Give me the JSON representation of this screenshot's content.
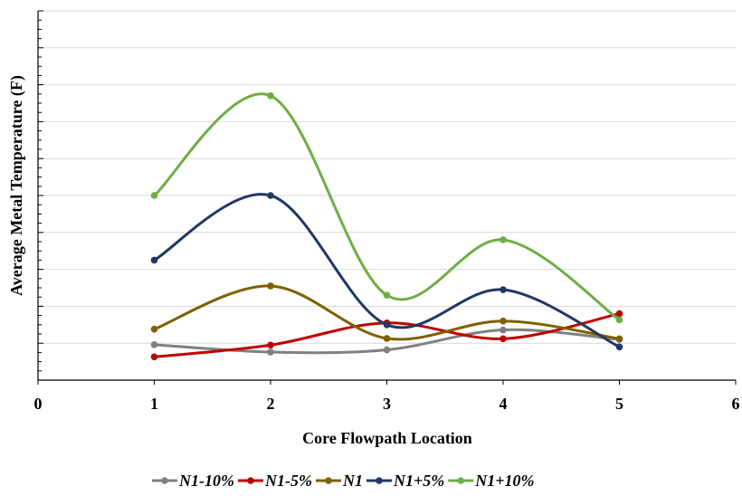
{
  "chart_data": {
    "type": "line",
    "smooth": true,
    "xlabel": "Core Flowpath Location",
    "ylabel": "Average Metal Temperature (F)",
    "xlim": [
      0,
      6
    ],
    "xticks": [
      "0",
      "1",
      "2",
      "3",
      "4",
      "5",
      "6"
    ],
    "ylim": [
      0,
      10
    ],
    "ytick_labels_shown": false,
    "grid": "horizontal",
    "legend_position": "bottom",
    "series": [
      {
        "name": "N1-10%",
        "color": "#808080",
        "x": [
          1,
          2,
          3,
          4,
          5
        ],
        "y": [
          0.96,
          0.76,
          0.82,
          1.36,
          1.1
        ]
      },
      {
        "name": "N1-5%",
        "color": "#c00000",
        "x": [
          1,
          2,
          3,
          4,
          5
        ],
        "y": [
          0.63,
          0.95,
          1.55,
          1.12,
          1.8
        ]
      },
      {
        "name": "N1",
        "color": "#7f6000",
        "x": [
          1,
          2,
          3,
          4,
          5
        ],
        "y": [
          1.38,
          2.55,
          1.13,
          1.6,
          1.12
        ]
      },
      {
        "name": "N1+5%",
        "color": "#203864",
        "x": [
          1,
          2,
          3,
          4,
          5
        ],
        "y": [
          3.25,
          5.0,
          1.5,
          2.45,
          0.9
        ]
      },
      {
        "name": "N1+10%",
        "color": "#70ad47",
        "x": [
          1,
          2,
          3,
          4,
          5
        ],
        "y": [
          5.0,
          7.7,
          2.3,
          3.8,
          1.63
        ]
      }
    ]
  }
}
